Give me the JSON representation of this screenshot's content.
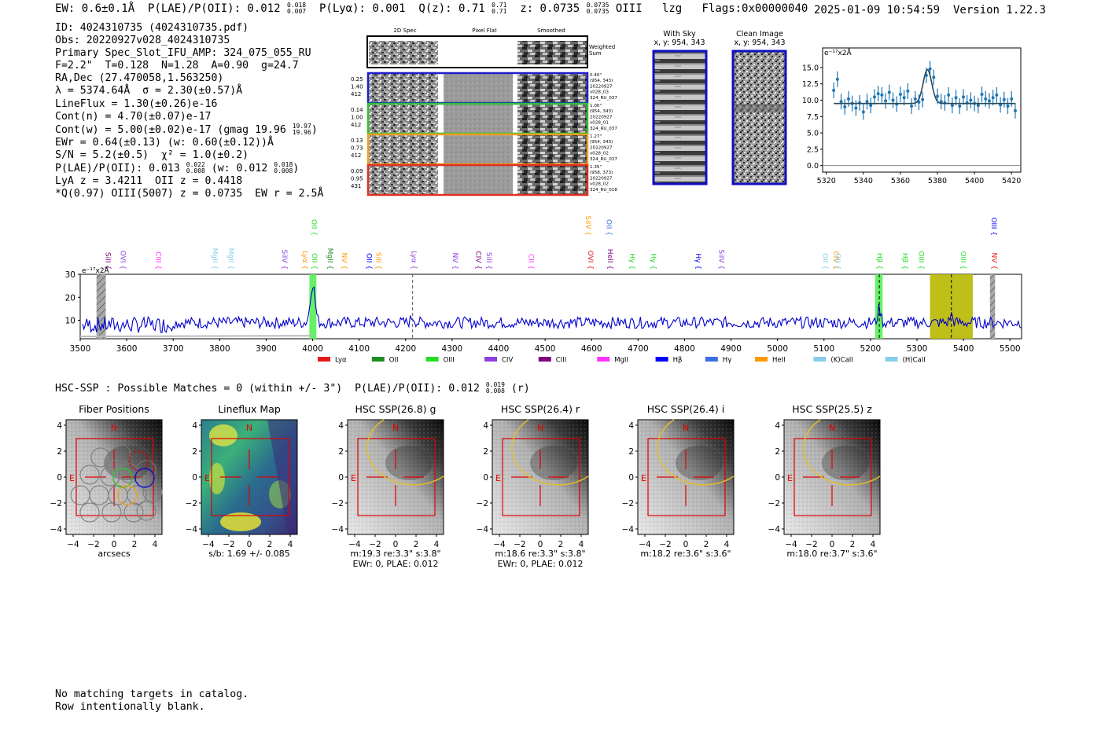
{
  "header": {
    "summary": "EW: 0.6±0.1Å  P(LAE)/P(OII): 0.012",
    "plae_hi": "0.018",
    "plae_lo": "0.007",
    "plya": "P(Lyα): 0.001",
    "qz": "Q(z): 0.71",
    "qz_hi": "0.71",
    "qz_lo": "0.71",
    "z": "z: 0.0735",
    "z_hi": "0.0735",
    "z_lo": "0.0735",
    "tail": "OIII   lzg   Flags:0x00000040",
    "timestamp": "2025-01-09 10:54:59",
    "version": "Version 1.22.3"
  },
  "info": {
    "l1": "ID: 4024310735 (4024310735.pdf)",
    "l2": "Obs: 20220927v028_4024310735",
    "l3": "Primary Spec_Slot_IFU_AMP: 324_075_055_RU",
    "l4": "F=2.2\"  T=0.128  N=1.28  A=0.90  g=24.7",
    "l5": "RA,Dec (27.470058,1.563250)",
    "l6": "λ = 5374.64Å  σ = 2.30(±0.57)Å",
    "l7": "LineFlux = 1.30(±0.26)e-16",
    "l8": "Cont(n) = 4.70(±0.07)e-17",
    "l9": "Cont(w) = 5.00(±0.02)e-17 (gmag 19.96",
    "l9_hi": "19.97",
    "l9_lo": "19.96",
    "l10": "EWr = 0.64(±0.13) (w: 0.60(±0.12))Å",
    "l11": "S/N = 5.2(±0.5)  χ² = 1.0(±0.2)",
    "l12": "P(LAE)/P(OII): 0.013",
    "l12_hi": "0.022",
    "l12_lo": "0.008",
    "l12b": "(w: 0.012",
    "l12b_hi": "0.018",
    "l12b_lo": "0.008",
    "l13": "LyA z = 3.4211  OII z = 0.4418",
    "l14": "*Q(0.97) OIII(5007) z = 0.0735  EW r = 2.5Å"
  },
  "spec2d": {
    "col_headers": [
      "2D Spec",
      "Pixel Flat",
      "Smoothed"
    ],
    "weighted_label": [
      "Weighted",
      "Sum"
    ],
    "rows": [
      {
        "left": [
          "0.25",
          "1.40",
          "412"
        ],
        "right": [
          "0.40\"",
          "(954, 343)",
          "20220927",
          "v028_03",
          "324_RU_037"
        ],
        "color": "#1f1fd0"
      },
      {
        "left": [
          "0.14",
          "1.00",
          "412"
        ],
        "right": [
          "1.00\"",
          "(954, 343)",
          "20220927",
          "v028_01",
          "324_RU_037"
        ],
        "color": "#30c030"
      },
      {
        "left": [
          "0.13",
          "0.73",
          "412"
        ],
        "right": [
          "1.27\"",
          "(954, 343)",
          "20220927",
          "v028_02",
          "324_RU_037"
        ],
        "color": "#f0a020"
      },
      {
        "left": [
          "0.09",
          "0.95",
          "431"
        ],
        "right": [
          "1.35\"",
          "(958, 373)",
          "20220927",
          "v028_02",
          "324_RU_018"
        ],
        "color": "#e03020"
      }
    ]
  },
  "sky_panels": [
    {
      "title": "With Sky",
      "subtitle": "x, y: 954, 343"
    },
    {
      "title": "Clean Image",
      "subtitle": "x, y: 954, 343"
    }
  ],
  "colors": {
    "spectrum": "#0000cc",
    "fit": "#2a4a5a",
    "points": "#1f77b4",
    "lya": "#e31a1c",
    "oii": "#228b22",
    "oiii": "#22dd22",
    "civ": "#9040e0",
    "ciii": "#800080",
    "mgii": "#ff33ff",
    "hbeta": "#0000ff",
    "hgamma": "#3a70e0",
    "heii": "#ff9900",
    "kcaii": "#87ceeb",
    "hcaii": "#87ceeb",
    "olive": "#b8b800"
  },
  "chart_data": [
    {
      "type": "scatter",
      "name": "zoom-line-fit",
      "ylabel_unit": "e⁻¹⁷x2Å",
      "xlim": [
        5318,
        5425
      ],
      "ylim": [
        -1,
        18
      ],
      "xticks": [
        5320,
        5340,
        5360,
        5380,
        5400,
        5420
      ],
      "yticks": [
        0.0,
        2.5,
        5.0,
        7.5,
        10.0,
        12.5,
        15.0
      ],
      "ytick_labels": [
        "0.0",
        "2.5",
        "5.0",
        "7.5",
        "10.0",
        "12.5",
        "15.0"
      ],
      "points_x": [
        5324,
        5326,
        5328,
        5330,
        5332,
        5334,
        5336,
        5338,
        5340,
        5342,
        5344,
        5346,
        5348,
        5350,
        5352,
        5354,
        5356,
        5358,
        5360,
        5362,
        5364,
        5366,
        5368,
        5370,
        5372,
        5374,
        5376,
        5378,
        5380,
        5382,
        5384,
        5386,
        5388,
        5390,
        5392,
        5394,
        5396,
        5398,
        5400,
        5402,
        5404,
        5406,
        5408,
        5410,
        5412,
        5414,
        5416,
        5418,
        5420,
        5422
      ],
      "points_y": [
        11.5,
        13.2,
        9.8,
        9.0,
        10.2,
        9.5,
        8.8,
        9.6,
        8.2,
        9.8,
        9.2,
        10.5,
        11.0,
        10.8,
        9.9,
        11.2,
        10.0,
        9.4,
        10.9,
        10.4,
        11.4,
        9.1,
        10.2,
        9.7,
        10.1,
        13.8,
        14.8,
        13.5,
        10.6,
        9.8,
        9.6,
        10.8,
        9.2,
        10.4,
        9.1,
        10.5,
        9.6,
        10.0,
        9.5,
        9.2,
        10.9,
        10.2,
        9.9,
        10.4,
        10.8,
        9.3,
        10.1,
        9.1,
        10.2,
        8.4
      ],
      "point_err": 1.2,
      "fit": {
        "continuum": 9.5,
        "center": 5374.6,
        "amplitude": 5.2,
        "sigma": 2.3
      }
    },
    {
      "type": "line",
      "name": "full-spectrum",
      "ylabel_unit": "e⁻¹⁷x2Å",
      "xlim": [
        3500,
        5525
      ],
      "ylim": [
        2,
        30
      ],
      "xticks": [
        3500,
        3600,
        3700,
        3800,
        3900,
        4000,
        4100,
        4200,
        4300,
        4400,
        4500,
        4600,
        4700,
        4800,
        4900,
        5000,
        5100,
        5200,
        5300,
        5400,
        5500
      ],
      "yticks": [
        10,
        20,
        30
      ],
      "continuum": 9.0,
      "features": [
        {
          "center": 4000,
          "amp": 17,
          "width": 5
        },
        {
          "center": 5219,
          "amp": 6,
          "width": 3.5
        },
        {
          "center": 5374,
          "amp": 3.5,
          "width": 3
        },
        {
          "center": 4215,
          "amp": 2.5,
          "width": 4
        }
      ],
      "shaded_regions": [
        {
          "x0": 3535,
          "x1": 3555,
          "color": "#a0a0a0",
          "hatch": true
        },
        {
          "x0": 3993,
          "x1": 4008,
          "color": "#55ee55"
        },
        {
          "x0": 5210,
          "x1": 5226,
          "color": "#55ee55"
        },
        {
          "x0": 5328,
          "x1": 5420,
          "color": "#b8b800"
        },
        {
          "x0": 5457,
          "x1": 5468,
          "color": "#a0a0a0",
          "hatch": true
        }
      ],
      "vlines": [
        {
          "x": 4215,
          "color": "#555555",
          "dashed": true
        },
        {
          "x": 5219,
          "color": "#000000",
          "dashed": true
        },
        {
          "x": 5374,
          "color": "#000000",
          "dashed": true
        }
      ],
      "line_labels": [
        {
          "x": 3560,
          "label": "SiII",
          "color": "#800080",
          "row": "low"
        },
        {
          "x": 3592,
          "label": "OVI",
          "color": "#9040e0",
          "row": "low"
        },
        {
          "x": 3668,
          "label": "CIII",
          "color": "#ff33ff",
          "row": "low"
        },
        {
          "x": 3790,
          "label": "MgII",
          "color": "#87ceeb",
          "row": "low"
        },
        {
          "x": 3825,
          "label": "MgII",
          "color": "#87ceeb",
          "row": "low"
        },
        {
          "x": 3940,
          "label": "SiIV",
          "color": "#9040e0",
          "row": "low"
        },
        {
          "x": 3984,
          "label": "Lyα",
          "color": "#ff9900",
          "row": "low"
        },
        {
          "x": 4004,
          "label": "OII",
          "color": "#22dd22",
          "row": "low"
        },
        {
          "x": 4003,
          "label": "OII",
          "color": "#22dd22",
          "row": "high"
        },
        {
          "x": 4038,
          "label": "MgII",
          "color": "#228b22",
          "row": "low"
        },
        {
          "x": 4068,
          "label": "NV",
          "color": "#ff9900",
          "row": "low"
        },
        {
          "x": 4122,
          "label": "OII",
          "color": "#0000ff",
          "row": "low"
        },
        {
          "x": 4142,
          "label": "SiII",
          "color": "#ff9900",
          "row": "low"
        },
        {
          "x": 4218,
          "label": "Lyα",
          "color": "#9040e0",
          "row": "low"
        },
        {
          "x": 4307,
          "label": "NV",
          "color": "#9040e0",
          "row": "low"
        },
        {
          "x": 4357,
          "label": "CIV",
          "color": "#800080",
          "row": "low"
        },
        {
          "x": 4380,
          "label": "SiII",
          "color": "#9040e0",
          "row": "low"
        },
        {
          "x": 4470,
          "label": "CII",
          "color": "#ff33ff",
          "row": "low"
        },
        {
          "x": 4593,
          "label": "SiIV",
          "color": "#ff9900",
          "row": "high"
        },
        {
          "x": 4598,
          "label": "OVI",
          "color": "#e31a1c",
          "row": "low"
        },
        {
          "x": 4638,
          "label": "OII",
          "color": "#3a70e0",
          "row": "high"
        },
        {
          "x": 4640,
          "label": "HeII",
          "color": "#800080",
          "row": "low"
        },
        {
          "x": 4688,
          "label": "Hγ",
          "color": "#22dd22",
          "row": "low"
        },
        {
          "x": 4733,
          "label": "Hγ",
          "color": "#22dd22",
          "row": "low"
        },
        {
          "x": 4830,
          "label": "Hγ",
          "color": "#0000ff",
          "row": "low"
        },
        {
          "x": 4880,
          "label": "SiIV",
          "color": "#9040e0",
          "row": "low"
        },
        {
          "x": 5103,
          "label": "OII",
          "color": "#87ceeb",
          "row": "low"
        },
        {
          "x": 5126,
          "label": "CIV",
          "color": "#ff9900",
          "row": "low"
        },
        {
          "x": 5130,
          "label": "OII",
          "color": "#87ceeb",
          "row": "low"
        },
        {
          "x": 5220,
          "label": "Hβ",
          "color": "#22dd22",
          "row": "low"
        },
        {
          "x": 5275,
          "label": "Hβ",
          "color": "#22dd22",
          "row": "low"
        },
        {
          "x": 5309,
          "label": "OIII",
          "color": "#22dd22",
          "row": "low"
        },
        {
          "x": 5400,
          "label": "OIII",
          "color": "#22dd22",
          "row": "low"
        },
        {
          "x": 5467,
          "label": "NV",
          "color": "#e31a1c",
          "row": "low"
        },
        {
          "x": 5466,
          "label": "OIII",
          "color": "#0000ff",
          "row": "high"
        }
      ],
      "legend": [
        {
          "label": "Lyα",
          "color": "#e31a1c"
        },
        {
          "label": "OII",
          "color": "#228b22"
        },
        {
          "label": "OIII",
          "color": "#22dd22"
        },
        {
          "label": "CIV",
          "color": "#9040e0"
        },
        {
          "label": "CIII",
          "color": "#800080"
        },
        {
          "label": "MgII",
          "color": "#ff33ff"
        },
        {
          "label": "Hβ",
          "color": "#0000ff"
        },
        {
          "label": "Hγ",
          "color": "#3a70e0"
        },
        {
          "label": "HeII",
          "color": "#ff9900"
        },
        {
          "label": "(K)CaII",
          "color": "#87ceeb"
        },
        {
          "label": "(H)CaII",
          "color": "#87ceeb"
        }
      ]
    }
  ],
  "hsc": {
    "summary": "HSC-SSP : Possible Matches = 0 (within +/- 3\")  P(LAE)/P(OII): 0.012",
    "hi": "0.019",
    "lo": "0.008",
    "band": "(r)"
  },
  "cutouts": {
    "axis_ticks": [
      "4",
      "2",
      "0",
      "−2",
      "−4"
    ],
    "xaxis_ticks": [
      "−4",
      "−2",
      "0",
      "2",
      "4"
    ],
    "n_label": "N",
    "e_label": "E",
    "panels": [
      {
        "title": "Fiber Positions",
        "cap1": "arcsecs",
        "cap2": "",
        "kind": "fiber"
      },
      {
        "title": "Lineflux Map",
        "cap1": "s/b: 1.69 +/- 0.085",
        "cap2": "",
        "kind": "flux"
      },
      {
        "title": "HSC SSP(26.8) g",
        "cap1": "m:19.3  re:3.3\"  s:3.8\"",
        "cap2": "EWr: 0, PLAE: 0.012",
        "kind": "hsc"
      },
      {
        "title": "HSC SSP(26.4) r",
        "cap1": "m:18.6  re:3.3\"  s:3.8\"",
        "cap2": "EWr: 0, PLAE: 0.012",
        "kind": "hsc"
      },
      {
        "title": "HSC SSP(26.4) i",
        "cap1": "m:18.2  re:3.6\"  s:3.6\"",
        "cap2": "",
        "kind": "hsc"
      },
      {
        "title": "HSC SSP(25.5) z",
        "cap1": "m:18.0  re:3.7\"  s:3.6\"",
        "cap2": "",
        "kind": "hsc"
      }
    ]
  },
  "footer": {
    "line1": "No matching targets in catalog.",
    "line2": "Row intentionally blank."
  }
}
